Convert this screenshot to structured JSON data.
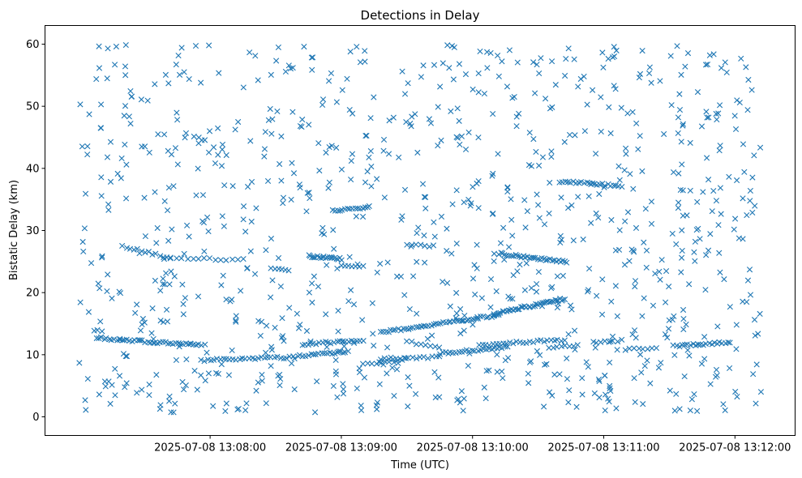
{
  "chart_data": {
    "type": "scatter",
    "title": "Detections in Delay",
    "xlabel": "Time (UTC)",
    "ylabel": "Bistatic Delay (km)",
    "marker": "x",
    "color": "#1f77b4",
    "grid": false,
    "x_range_seconds_after_13_07_00": [
      -15.5,
      327.5
    ],
    "xlim": [
      "2025-07-08 13:06:44.5",
      "2025-07-08 13:12:27.5"
    ],
    "ylim": [
      -3,
      63
    ],
    "x_ticks": [
      "2025-07-08 13:08:00",
      "2025-07-08 13:09:00",
      "2025-07-08 13:10:00",
      "2025-07-08 13:11:00",
      "2025-07-08 13:12:00"
    ],
    "y_ticks": [
      "0",
      "10",
      "20",
      "30",
      "40",
      "50",
      "60"
    ],
    "seed": 20250708,
    "n_random_detections": 950,
    "time_start": "2025-07-08 13:07:00",
    "time_end": "2025-07-08 13:12:12",
    "delay_min": 0.5,
    "delay_max": 60,
    "tracks": [
      {
        "t0": "2025-07-08 13:07:08",
        "t1": "2025-07-08 13:07:56",
        "d0": 12.7,
        "d1": 11.5,
        "n": 42
      },
      {
        "t0": "2025-07-08 13:07:56",
        "t1": "2025-07-08 13:08:38",
        "d0": 9.1,
        "d1": 9.6,
        "n": 30
      },
      {
        "t0": "2025-07-08 13:08:40",
        "t1": "2025-07-08 13:09:03",
        "d0": 9.8,
        "d1": 10.5,
        "n": 20
      },
      {
        "t0": "2025-07-08 13:08:42",
        "t1": "2025-07-08 13:09:10",
        "d0": 11.7,
        "d1": 12.3,
        "n": 22
      },
      {
        "t0": "2025-07-08 13:08:45",
        "t1": "2025-07-08 13:09:00",
        "d0": 25.9,
        "d1": 25.4,
        "n": 20
      },
      {
        "t0": "2025-07-08 13:07:20",
        "t1": "2025-07-08 13:07:42",
        "d0": 27.5,
        "d1": 25.5,
        "n": 14
      },
      {
        "t0": "2025-07-08 13:07:42",
        "t1": "2025-07-08 13:08:15",
        "d0": 25.6,
        "d1": 25.3,
        "n": 14
      },
      {
        "t0": "2025-07-08 13:08:28",
        "t1": "2025-07-08 13:08:36",
        "d0": 23.8,
        "d1": 23.7,
        "n": 6
      },
      {
        "t0": "2025-07-08 13:09:00",
        "t1": "2025-07-08 13:09:10",
        "d0": 24.4,
        "d1": 24.3,
        "n": 7
      },
      {
        "t0": "2025-07-08 13:08:56",
        "t1": "2025-07-08 13:09:13",
        "d0": 33.2,
        "d1": 33.8,
        "n": 16
      },
      {
        "t0": "2025-07-08 13:09:10",
        "t1": "2025-07-08 13:09:28",
        "d0": 8.5,
        "d1": 9.0,
        "n": 10
      },
      {
        "t0": "2025-07-08 13:09:18",
        "t1": "2025-07-08 13:09:45",
        "d0": 9.3,
        "d1": 9.6,
        "n": 16
      },
      {
        "t0": "2025-07-08 13:09:18",
        "t1": "2025-07-08 13:10:12",
        "d0": 13.6,
        "d1": 16.4,
        "n": 48
      },
      {
        "t0": "2025-07-08 13:10:12",
        "t1": "2025-07-08 13:10:42",
        "d0": 16.8,
        "d1": 19.0,
        "n": 36
      },
      {
        "t0": "2025-07-08 13:09:45",
        "t1": "2025-07-08 13:10:16",
        "d0": 10.2,
        "d1": 11.2,
        "n": 26
      },
      {
        "t0": "2025-07-08 13:10:03",
        "t1": "2025-07-08 13:10:42",
        "d0": 11.6,
        "d1": 12.4,
        "n": 26
      },
      {
        "t0": "2025-07-08 13:10:12",
        "t1": "2025-07-08 13:10:43",
        "d0": 26.3,
        "d1": 24.9,
        "n": 34
      },
      {
        "t0": "2025-07-08 13:10:35",
        "t1": "2025-07-08 13:10:48",
        "d0": 11.1,
        "d1": 11.5,
        "n": 8
      },
      {
        "t0": "2025-07-08 13:10:40",
        "t1": "2025-07-08 13:11:08",
        "d0": 37.9,
        "d1": 37.2,
        "n": 24
      },
      {
        "t0": "2025-07-08 13:11:10",
        "t1": "2025-07-08 13:11:24",
        "d0": 10.9,
        "d1": 11.1,
        "n": 8
      },
      {
        "t0": "2025-07-08 13:11:32",
        "t1": "2025-07-08 13:11:58",
        "d0": 11.4,
        "d1": 12.0,
        "n": 22
      },
      {
        "t0": "2025-07-08 13:09:30",
        "t1": "2025-07-08 13:09:40",
        "d0": 27.8,
        "d1": 27.4,
        "n": 6
      },
      {
        "t0": "2025-07-08 13:09:30",
        "t1": "2025-07-08 13:09:45",
        "d0": 12.2,
        "d1": 11.0,
        "n": 8
      },
      {
        "t0": "2025-07-08 13:10:55",
        "t1": "2025-07-08 13:11:08",
        "d0": 12.0,
        "d1": 12.3,
        "n": 8
      }
    ]
  }
}
